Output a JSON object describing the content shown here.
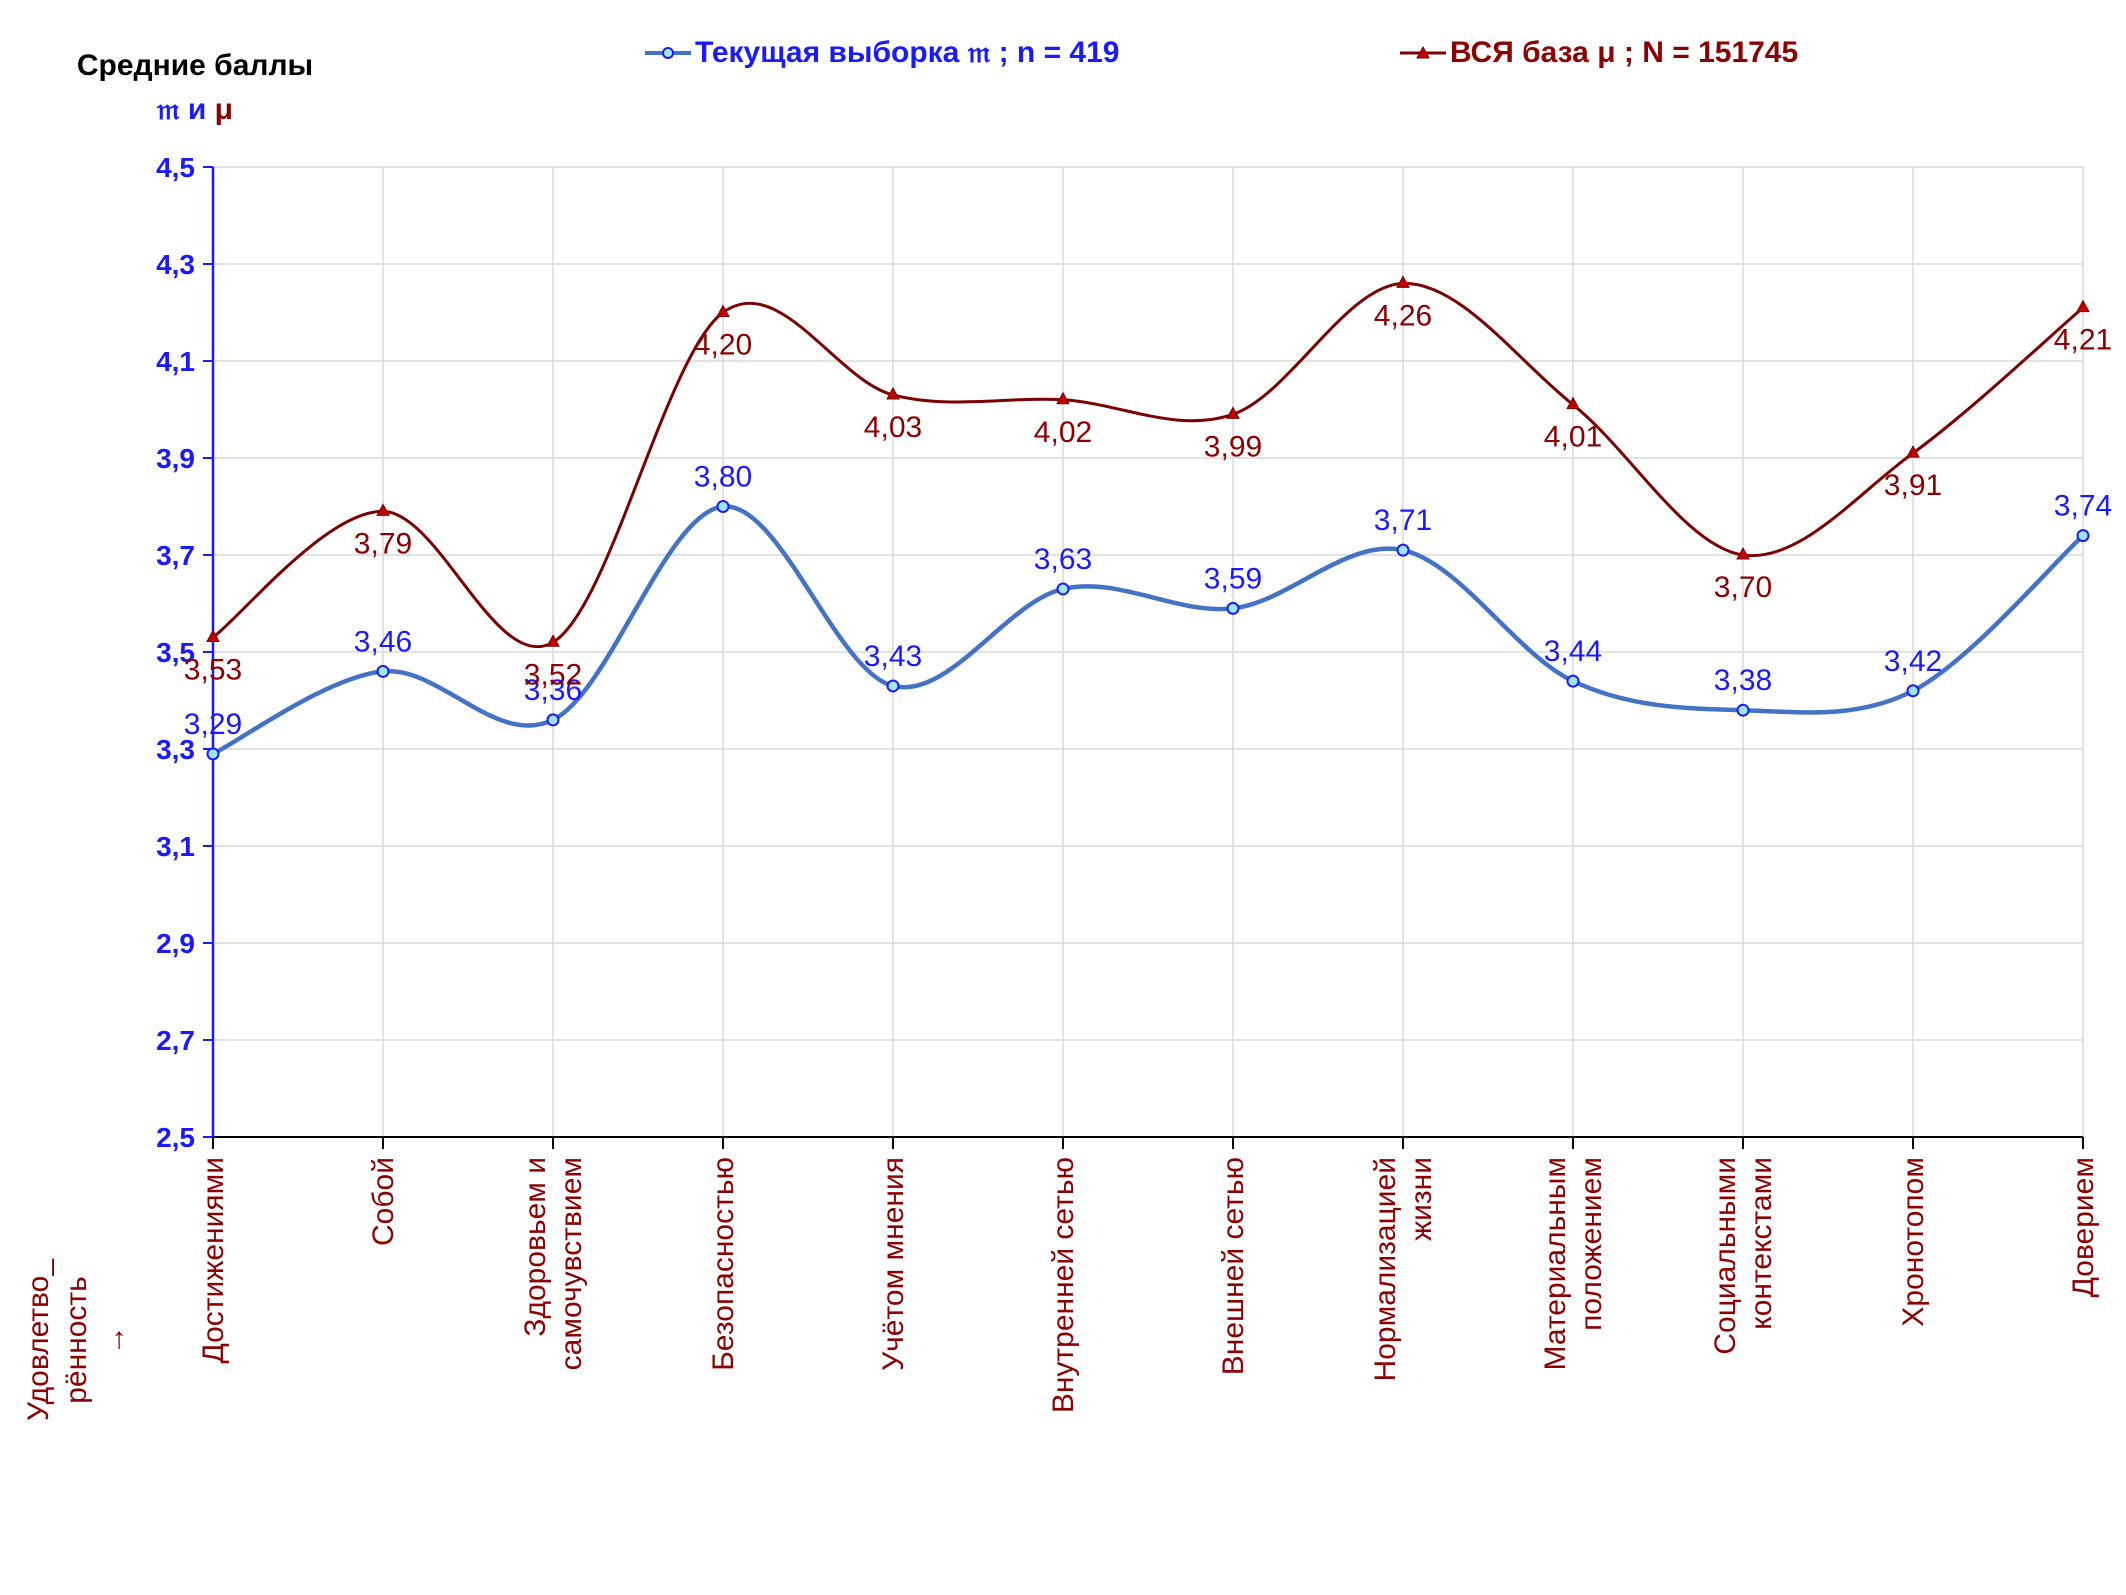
{
  "chart_data": {
    "type": "line",
    "title": "",
    "ylabel": "Средние баллы",
    "ylabel_symbols": [
      "𝔪",
      "и",
      "μ"
    ],
    "ylim": [
      2.5,
      4.5
    ],
    "yticks": [
      "4,5",
      "4,3",
      "4,1",
      "3,9",
      "3,7",
      "3,5",
      "3,3",
      "3,1",
      "2,9",
      "2,7",
      "2,5"
    ],
    "ytick_values": [
      4.5,
      4.3,
      4.1,
      3.9,
      3.7,
      3.5,
      3.3,
      3.1,
      2.9,
      2.7,
      2.5
    ],
    "grid": true,
    "legend_position": "top",
    "xaxis_side_label": "Удовлетво_\nрённость\n→",
    "categories": [
      "Достижениями",
      "Собой",
      "Здоровьем и\nсамочувствием",
      "Безопасностью",
      "Учётом мнения",
      "Внутренней сетью",
      "Внешней сетью",
      "Нормализацией\nжизни",
      "Материальным\nположением",
      "Социальными\nконтекстами",
      "Хронотопом",
      "Доверием"
    ],
    "series": [
      {
        "name": "Текущая выборка 𝔪 ; n = 419",
        "color": "#4472c4",
        "label_color": "#1a1aff",
        "marker": "circle",
        "values": [
          3.29,
          3.46,
          3.36,
          3.8,
          3.43,
          3.63,
          3.59,
          3.71,
          3.44,
          3.38,
          3.42,
          3.74
        ],
        "labels": [
          "3,29",
          "3,46",
          "3,36",
          "3,80",
          "3,43",
          "3,63",
          "3,59",
          "3,71",
          "3,44",
          "3,38",
          "3,42",
          "3,74"
        ]
      },
      {
        "name": "ВСЯ база μ ; N = 151745",
        "color": "#7b0000",
        "label_color": "#8b0000",
        "marker": "triangle",
        "values": [
          3.53,
          3.79,
          3.52,
          4.2,
          4.03,
          4.02,
          3.99,
          4.26,
          4.01,
          3.7,
          3.91,
          4.21
        ],
        "labels": [
          "3,53",
          "3,79",
          "3,52",
          "4,20",
          "4,03",
          "4,02",
          "3,99",
          "4,26",
          "4,01",
          "3,70",
          "3,91",
          "4,21"
        ]
      }
    ]
  }
}
